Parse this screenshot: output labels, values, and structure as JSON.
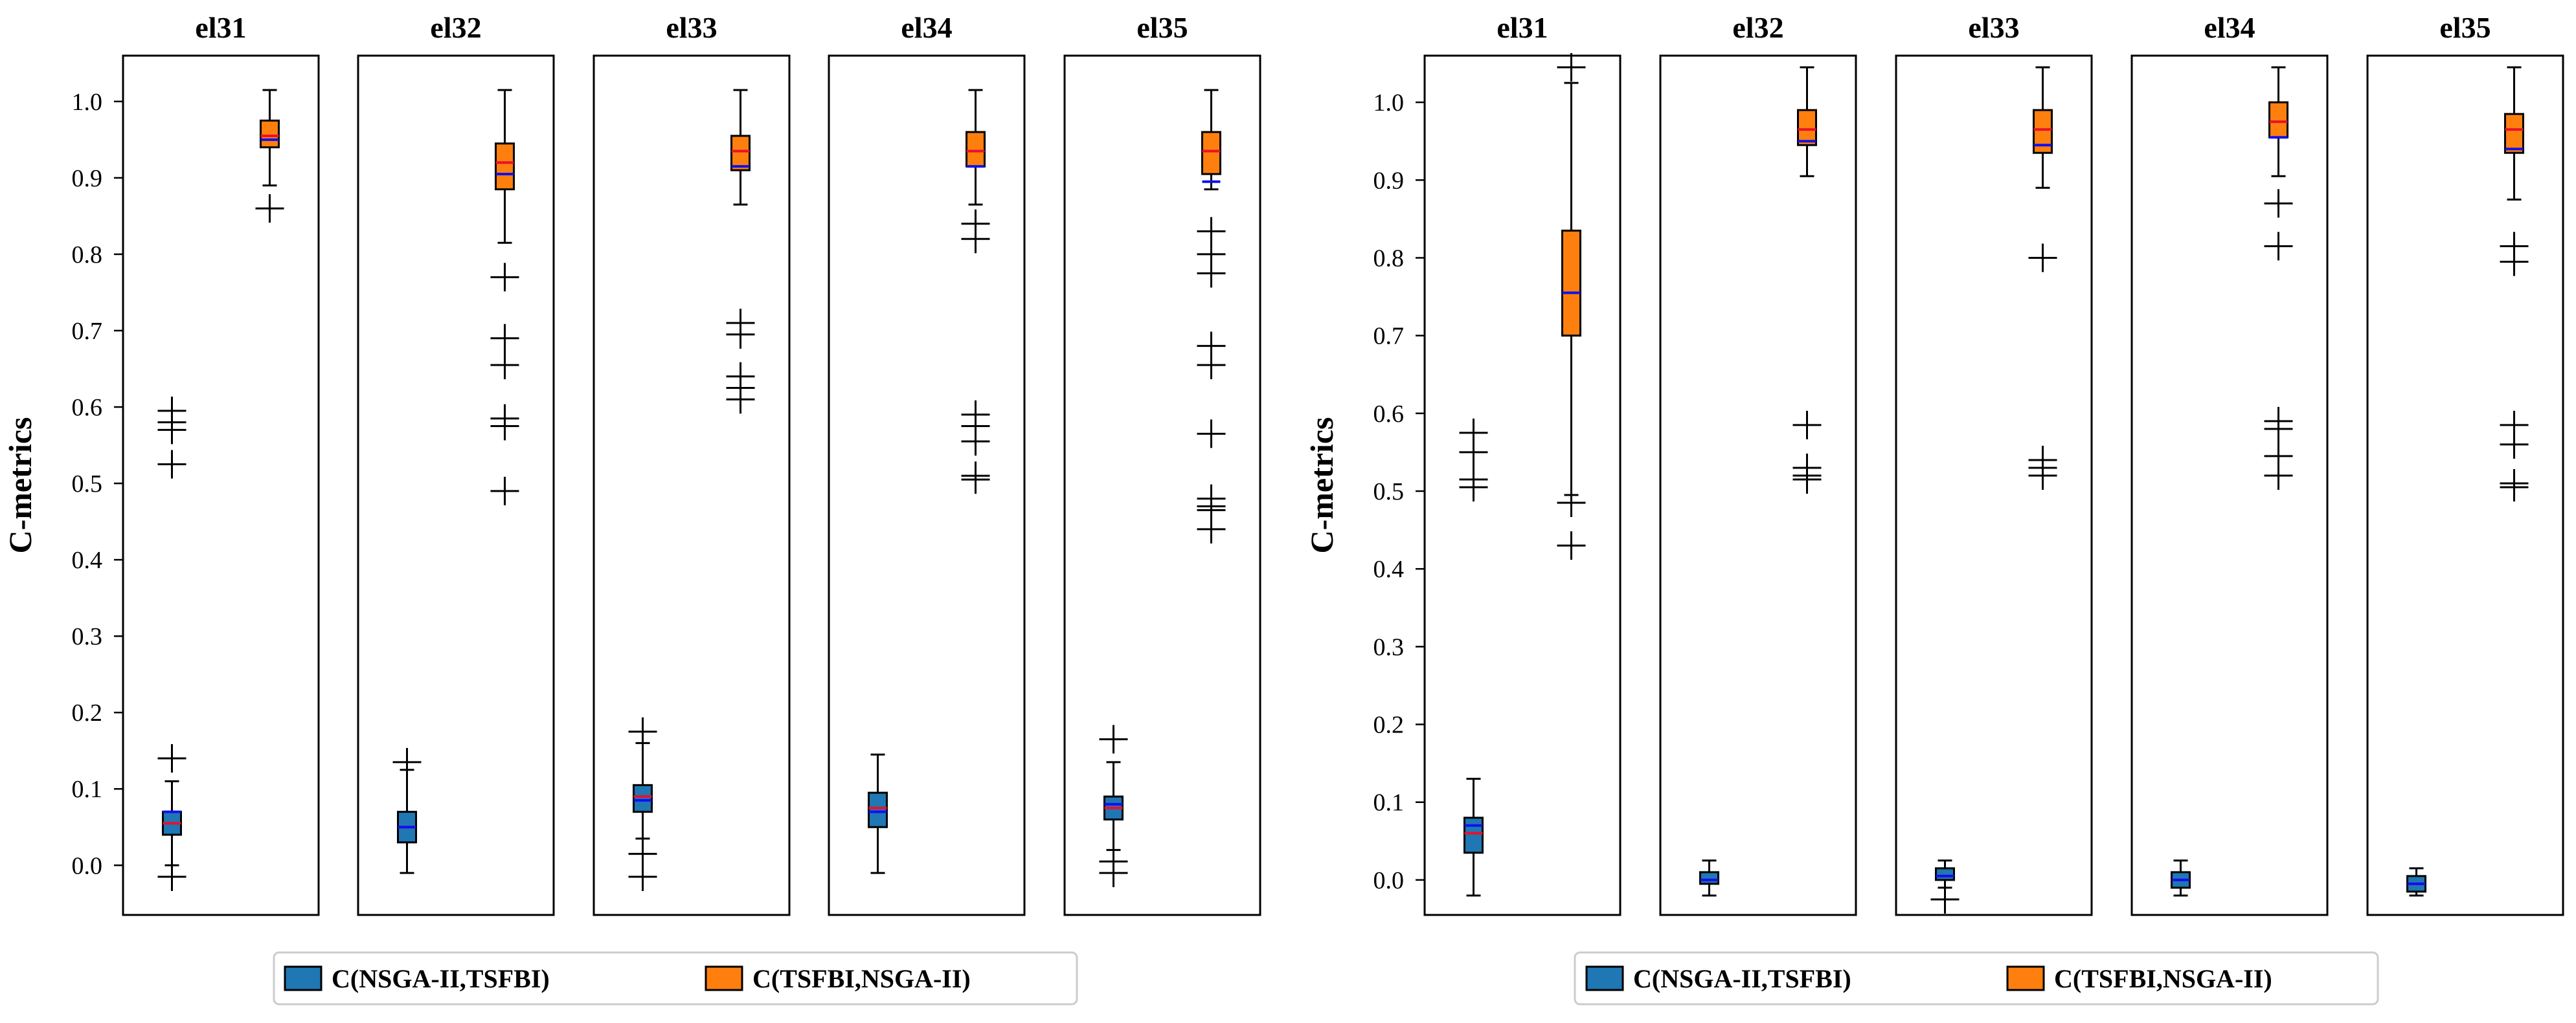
{
  "chart_data": [
    {
      "type": "box",
      "ylabel": "C-metrics",
      "ylim": [
        -0.065,
        1.06
      ],
      "yticks": [
        "0.0",
        "0.1",
        "0.2",
        "0.3",
        "0.4",
        "0.5",
        "0.6",
        "0.7",
        "0.8",
        "0.9",
        "1.0"
      ],
      "legend": {
        "placement": "bottom",
        "entries": [
          {
            "label": "C(NSGA-II,TSFBI)",
            "color": "#1f77b4"
          },
          {
            "label": "C(TSFBI,NSGA-II)",
            "color": "#ff7f0e"
          }
        ]
      },
      "panels": [
        {
          "title": "el31",
          "boxes": [
            {
              "series": "C(NSGA-II,TSFBI)",
              "q1": 0.04,
              "q3": 0.07,
              "median": 0.055,
              "mean": 0.07,
              "whislo": 0.0,
              "whishi": 0.11,
              "fliers": [
                0.14,
                -0.015
              ]
            },
            {
              "series": "C(TSFBI,NSGA-II)",
              "q1": 0.94,
              "q3": 0.975,
              "median": 0.955,
              "mean": 0.95,
              "whislo": 0.89,
              "whishi": 1.015,
              "fliers": [
                0.86
              ]
            }
          ],
          "extra_fliers": [
            0.595,
            0.58,
            0.57,
            0.525
          ]
        },
        {
          "title": "el32",
          "boxes": [
            {
              "series": "C(NSGA-II,TSFBI)",
              "q1": 0.03,
              "q3": 0.07,
              "median": 0.05,
              "mean": 0.05,
              "whislo": -0.01,
              "whishi": 0.125,
              "fliers": [
                0.135
              ]
            },
            {
              "series": "C(TSFBI,NSGA-II)",
              "q1": 0.885,
              "q3": 0.945,
              "median": 0.92,
              "mean": 0.905,
              "whislo": 0.815,
              "whishi": 1.015,
              "fliers": [
                0.77,
                0.69,
                0.655,
                0.585,
                0.575,
                0.49
              ]
            }
          ]
        },
        {
          "title": "el33",
          "boxes": [
            {
              "series": "C(NSGA-II,TSFBI)",
              "q1": 0.07,
              "q3": 0.105,
              "median": 0.09,
              "mean": 0.085,
              "whislo": 0.035,
              "whishi": 0.16,
              "fliers": [
                0.175,
                0.015,
                -0.015
              ]
            },
            {
              "series": "C(TSFBI,NSGA-II)",
              "q1": 0.91,
              "q3": 0.955,
              "median": 0.935,
              "mean": 0.915,
              "whislo": 0.865,
              "whishi": 1.015,
              "fliers": [
                0.71,
                0.695,
                0.64,
                0.625,
                0.61
              ]
            }
          ]
        },
        {
          "title": "el34",
          "boxes": [
            {
              "series": "C(NSGA-II,TSFBI)",
              "q1": 0.05,
              "q3": 0.095,
              "median": 0.075,
              "mean": 0.07,
              "whislo": -0.01,
              "whishi": 0.145,
              "fliers": []
            },
            {
              "series": "C(TSFBI,NSGA-II)",
              "q1": 0.915,
              "q3": 0.96,
              "median": 0.935,
              "mean": 0.915,
              "whislo": 0.865,
              "whishi": 1.015,
              "fliers": [
                0.84,
                0.82,
                0.59,
                0.575,
                0.555,
                0.51,
                0.505
              ]
            }
          ]
        },
        {
          "title": "el35",
          "boxes": [
            {
              "series": "C(NSGA-II,TSFBI)",
              "q1": 0.06,
              "q3": 0.09,
              "median": 0.075,
              "mean": 0.08,
              "whislo": 0.02,
              "whishi": 0.135,
              "fliers": [
                0.165,
                0.005,
                -0.01
              ]
            },
            {
              "series": "C(TSFBI,NSGA-II)",
              "q1": 0.905,
              "q3": 0.96,
              "median": 0.935,
              "mean": 0.895,
              "whislo": 0.885,
              "whishi": 1.015,
              "fliers": [
                0.83,
                0.8,
                0.775,
                0.68,
                0.655,
                0.565,
                0.48,
                0.47,
                0.465,
                0.44
              ]
            }
          ]
        }
      ]
    },
    {
      "type": "box",
      "ylabel": "C-metrics",
      "ylim": [
        -0.045,
        1.06
      ],
      "yticks": [
        "0.0",
        "0.1",
        "0.2",
        "0.3",
        "0.4",
        "0.5",
        "0.6",
        "0.7",
        "0.8",
        "0.9",
        "1.0"
      ],
      "legend": {
        "placement": "bottom",
        "entries": [
          {
            "label": "C(NSGA-II,TSFBI)",
            "color": "#1f77b4"
          },
          {
            "label": "C(TSFBI,NSGA-II)",
            "color": "#ff7f0e"
          }
        ]
      },
      "panels": [
        {
          "title": "el31",
          "boxes": [
            {
              "series": "C(NSGA-II,TSFBI)",
              "q1": 0.035,
              "q3": 0.08,
              "median": 0.06,
              "mean": 0.07,
              "whislo": -0.02,
              "whishi": 0.13,
              "fliers": []
            },
            {
              "series": "C(TSFBI,NSGA-II)",
              "q1": 0.7,
              "q3": 0.835,
              "median": 0.755,
              "mean": 0.755,
              "whislo": 0.495,
              "whishi": 1.025,
              "fliers": [
                1.045,
                0.485,
                0.43
              ]
            }
          ],
          "extra_fliers": [
            0.575,
            0.55,
            0.515,
            0.505
          ]
        },
        {
          "title": "el32",
          "boxes": [
            {
              "series": "C(NSGA-II,TSFBI)",
              "q1": -0.005,
              "q3": 0.01,
              "median": 0.0,
              "mean": 0.0,
              "whislo": -0.02,
              "whishi": 0.025,
              "fliers": []
            },
            {
              "series": "C(TSFBI,NSGA-II)",
              "q1": 0.945,
              "q3": 0.99,
              "median": 0.965,
              "mean": 0.95,
              "whislo": 0.905,
              "whishi": 1.045,
              "fliers": [
                0.585,
                0.53,
                0.52,
                0.515
              ]
            }
          ]
        },
        {
          "title": "el33",
          "boxes": [
            {
              "series": "C(NSGA-II,TSFBI)",
              "q1": 0.0,
              "q3": 0.015,
              "median": 0.005,
              "mean": 0.005,
              "whislo": -0.01,
              "whishi": 0.025,
              "fliers": [
                -0.025
              ]
            },
            {
              "series": "C(TSFBI,NSGA-II)",
              "q1": 0.935,
              "q3": 0.99,
              "median": 0.965,
              "mean": 0.945,
              "whislo": 0.89,
              "whishi": 1.045,
              "fliers": [
                0.8,
                0.54,
                0.53,
                0.52
              ]
            }
          ]
        },
        {
          "title": "el34",
          "boxes": [
            {
              "series": "C(NSGA-II,TSFBI)",
              "q1": -0.01,
              "q3": 0.01,
              "median": 0.0,
              "mean": 0.0,
              "whislo": -0.02,
              "whishi": 0.025,
              "fliers": []
            },
            {
              "series": "C(TSFBI,NSGA-II)",
              "q1": 0.955,
              "q3": 1.0,
              "median": 0.975,
              "mean": 0.955,
              "whislo": 0.905,
              "whishi": 1.045,
              "fliers": [
                0.87,
                0.815,
                0.59,
                0.58,
                0.545,
                0.52
              ]
            }
          ]
        },
        {
          "title": "el35",
          "boxes": [
            {
              "series": "C(NSGA-II,TSFBI)",
              "q1": -0.015,
              "q3": 0.005,
              "median": -0.005,
              "mean": -0.005,
              "whislo": -0.02,
              "whishi": 0.015,
              "fliers": []
            },
            {
              "series": "C(TSFBI,NSGA-II)",
              "q1": 0.935,
              "q3": 0.985,
              "median": 0.965,
              "mean": 0.94,
              "whislo": 0.875,
              "whishi": 1.045,
              "fliers": [
                0.815,
                0.795,
                0.585,
                0.56,
                0.51,
                0.505
              ]
            }
          ]
        }
      ]
    }
  ]
}
